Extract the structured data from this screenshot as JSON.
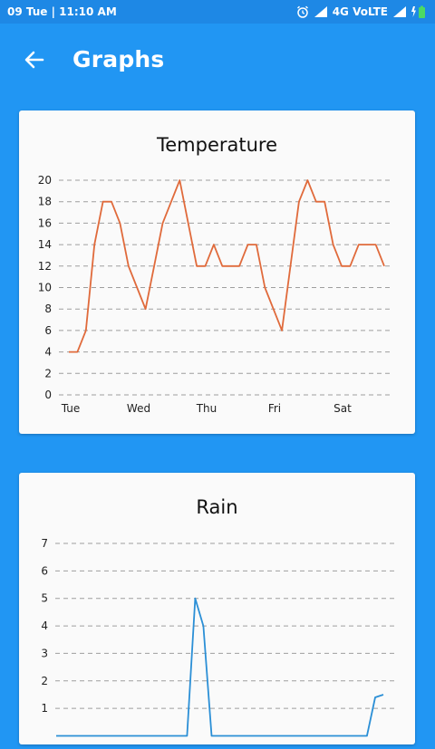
{
  "status_bar": {
    "time_text": "09 Tue  |  11:10 AM",
    "network_text": "4G VoLTE",
    "icons": [
      "alarm-icon",
      "signal-icon",
      "signal-icon",
      "battery-charging-icon"
    ]
  },
  "app_bar": {
    "back_icon": "arrow-left-icon",
    "title": "Graphs"
  },
  "colors": {
    "primary": "#2196F3",
    "status_bar": "#1E88E5",
    "temperature_line": "#E06A3B",
    "rain_line": "#2B8FD6",
    "battery": "#4CD964"
  },
  "chart_data": [
    {
      "type": "line",
      "title": "Temperature",
      "xlabel": "",
      "ylabel": "",
      "ylim": [
        0,
        20
      ],
      "yticks": [
        0,
        2,
        4,
        6,
        8,
        10,
        12,
        14,
        16,
        18,
        20
      ],
      "x_ticks": [
        "Tue",
        "Wed",
        "Thu",
        "Fri",
        "Sat"
      ],
      "grid": "horizontal-dashed",
      "series": [
        {
          "values": [
            4,
            4,
            6,
            14,
            18,
            18,
            16,
            12,
            10,
            8,
            12,
            16,
            18,
            20,
            16,
            12,
            12,
            14,
            12,
            12,
            12,
            14,
            14,
            10,
            8,
            6,
            12,
            18,
            20,
            18,
            18,
            14,
            12,
            12,
            14,
            14,
            14,
            12
          ]
        }
      ]
    },
    {
      "type": "line",
      "title": "Rain",
      "xlabel": "",
      "ylabel": "",
      "ylim": [
        0,
        7
      ],
      "yticks": [
        1,
        2,
        3,
        4,
        5,
        6,
        7
      ],
      "grid": "horizontal-dashed",
      "series": [
        {
          "values": [
            0,
            0,
            0,
            0,
            0,
            0,
            0,
            0,
            0,
            0,
            0,
            0,
            0,
            0,
            0,
            0,
            0,
            5,
            4,
            0,
            0,
            0,
            0,
            0,
            0,
            0,
            0,
            0,
            0,
            0,
            0,
            0,
            0,
            0,
            0,
            0,
            0,
            0,
            0,
            1.4,
            1.5
          ]
        }
      ]
    }
  ]
}
